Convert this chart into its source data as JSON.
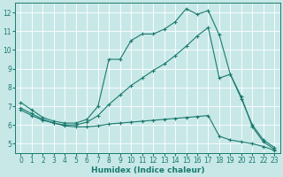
{
  "xlabel": "Humidex (Indice chaleur)",
  "background_color": "#c8e8e8",
  "grid_color": "#ffffff",
  "line_color": "#1a7a6e",
  "xlim": [
    -0.5,
    23.5
  ],
  "ylim": [
    4.5,
    12.5
  ],
  "xticks": [
    0,
    1,
    2,
    3,
    4,
    5,
    6,
    7,
    8,
    9,
    10,
    11,
    12,
    13,
    14,
    15,
    16,
    17,
    18,
    19,
    20,
    21,
    22,
    23
  ],
  "yticks": [
    5,
    6,
    7,
    8,
    9,
    10,
    11,
    12
  ],
  "line1_x": [
    0,
    1,
    2,
    3,
    4,
    5,
    6,
    7,
    8,
    9,
    10,
    11,
    12,
    13,
    14,
    15,
    16,
    17,
    18,
    19,
    20,
    21,
    22,
    23
  ],
  "line1_y": [
    7.2,
    6.8,
    6.4,
    6.2,
    6.1,
    6.1,
    6.3,
    7.0,
    9.5,
    9.5,
    10.5,
    10.85,
    10.85,
    11.1,
    11.5,
    12.2,
    11.9,
    12.1,
    10.8,
    8.7,
    7.4,
    6.0,
    5.2,
    4.8
  ],
  "line2_x": [
    0,
    1,
    2,
    3,
    4,
    5,
    6,
    7,
    8,
    9,
    10,
    11,
    12,
    13,
    14,
    15,
    16,
    17,
    18,
    19,
    20,
    21,
    22,
    23
  ],
  "line2_y": [
    6.9,
    6.6,
    6.3,
    6.1,
    6.0,
    6.0,
    6.15,
    6.5,
    7.1,
    7.6,
    8.1,
    8.5,
    8.9,
    9.25,
    9.7,
    10.2,
    10.75,
    11.2,
    8.5,
    8.7,
    7.5,
    5.9,
    5.1,
    4.7
  ],
  "line3_x": [
    0,
    1,
    2,
    3,
    4,
    5,
    6,
    7,
    8,
    9,
    10,
    11,
    12,
    13,
    14,
    15,
    16,
    17,
    18,
    19,
    20,
    21,
    22,
    23
  ],
  "line3_y": [
    6.8,
    6.5,
    6.25,
    6.1,
    5.95,
    5.9,
    5.9,
    5.95,
    6.05,
    6.1,
    6.15,
    6.2,
    6.25,
    6.3,
    6.35,
    6.4,
    6.45,
    6.5,
    5.4,
    5.2,
    5.1,
    5.0,
    4.85,
    4.65
  ]
}
